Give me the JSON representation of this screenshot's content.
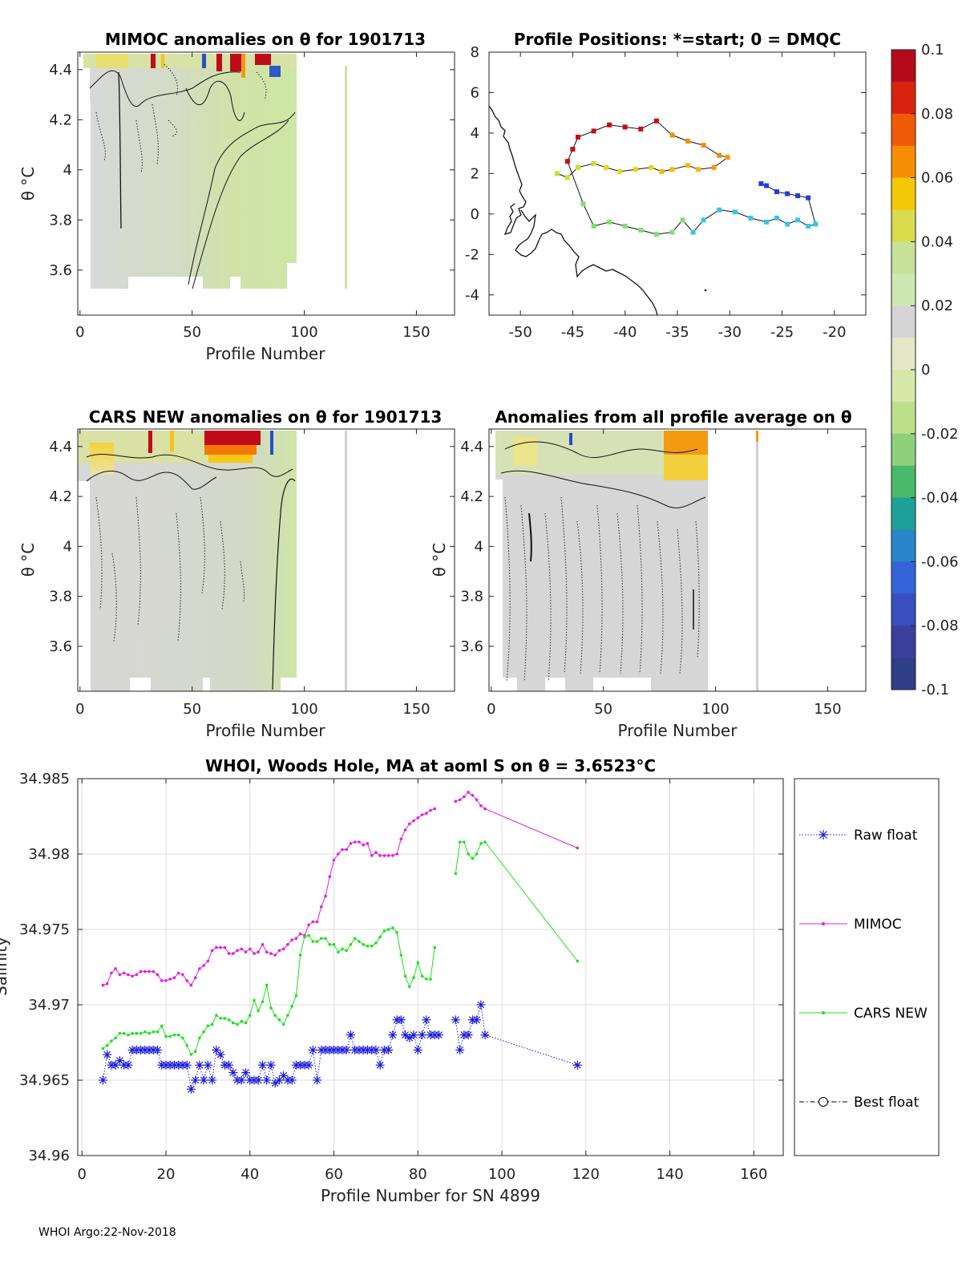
{
  "footer": "WHOI Argo:22-Nov-2018",
  "panels": {
    "mimoc": {
      "title": "MIMOC anomalies on θ  for 1901713",
      "xlabel": "Profile Number",
      "ylabel": "θ °C",
      "xticks": [
        "0",
        "50",
        "100",
        "150"
      ],
      "yticks": [
        "3.6",
        "3.8",
        "4",
        "4.2",
        "4.4"
      ],
      "xlim": [
        -1,
        167
      ],
      "ylim": [
        3.42,
        4.47
      ]
    },
    "positions": {
      "title": "Profile Positions: *=start; 0 = DMQC",
      "xticks": [
        "-50",
        "-45",
        "-40",
        "-35",
        "-30",
        "-25",
        "-20"
      ],
      "yticks": [
        "8",
        "6",
        "4",
        "2",
        "0",
        "-2",
        "-4"
      ],
      "xlim": [
        -53,
        -17
      ],
      "ylim": [
        -5,
        8
      ]
    },
    "cars": {
      "title": "CARS NEW anomalies on θ for 1901713",
      "xlabel": "Profile Number",
      "ylabel": "θ °C",
      "xticks": [
        "0",
        "50",
        "100",
        "150"
      ],
      "yticks": [
        "3.6",
        "3.8",
        "4",
        "4.2",
        "4.4"
      ]
    },
    "allavg": {
      "title": "Anomalies from all profile average on θ",
      "xlabel": "Profile Number",
      "ylabel": "θ °C",
      "xticks": [
        "0",
        "50",
        "100",
        "150"
      ],
      "yticks": [
        "3.6",
        "3.8",
        "4",
        "4.2",
        "4.4"
      ]
    },
    "colorbar": {
      "ticks": [
        "0.1",
        "0.08",
        "0.06",
        "0.04",
        "0.02",
        "0",
        "-0.02",
        "-0.04",
        "-0.06",
        "-0.08",
        "-0.1"
      ],
      "colors": [
        "#b40a1a",
        "#d8240f",
        "#ef5a07",
        "#f58e04",
        "#f3c806",
        "#d9dc4c",
        "#c8e29a",
        "#cfe8b2",
        "#d5d5d5",
        "#e4e8c8",
        "#d6e8a8",
        "#bce08a",
        "#8fd07a",
        "#48b86a",
        "#1ea09a",
        "#2a86c8",
        "#3464d8",
        "#3a4fbf",
        "#3a3e9c",
        "#2f3f88"
      ]
    }
  },
  "chart_data": {
    "type": "line",
    "title": "WHOI, Woods Hole, MA at aoml S on θ = 3.6523°C",
    "xlabel": "Profile Number for SN 4899",
    "ylabel": "Salinity",
    "xlim": [
      -1,
      167
    ],
    "ylim": [
      34.96,
      34.985
    ],
    "xticks": [
      "0",
      "20",
      "40",
      "60",
      "80",
      "100",
      "120",
      "140",
      "160"
    ],
    "yticks": [
      "34.96",
      "34.965",
      "34.97",
      "34.975",
      "34.98",
      "34.985"
    ],
    "legend": [
      "Raw float",
      "MIMOC",
      "CARS NEW",
      "Best float"
    ],
    "series": [
      {
        "name": "Raw float",
        "color": "#1a1adc",
        "x": [
          5,
          6,
          7,
          8,
          9,
          10,
          11,
          12,
          13,
          14,
          15,
          16,
          17,
          18,
          19,
          20,
          21,
          22,
          23,
          24,
          25,
          26,
          27,
          28,
          29,
          30,
          31,
          32,
          33,
          34,
          35,
          36,
          37,
          38,
          39,
          40,
          41,
          42,
          43,
          44,
          45,
          46,
          47,
          48,
          49,
          50,
          51,
          52,
          53,
          54,
          55,
          56,
          57,
          58,
          59,
          60,
          61,
          62,
          63,
          64,
          65,
          66,
          67,
          68,
          69,
          70,
          71,
          72,
          73,
          74,
          75,
          76,
          77,
          78,
          79,
          80,
          81,
          82,
          83,
          84,
          85,
          89,
          90,
          91,
          92,
          93,
          94,
          95,
          96,
          118
        ],
        "values": [
          34.965,
          34.9667,
          34.966,
          34.966,
          34.9663,
          34.966,
          34.966,
          34.967,
          34.967,
          34.967,
          34.967,
          34.967,
          34.967,
          34.967,
          34.966,
          34.966,
          34.966,
          34.966,
          34.966,
          34.966,
          34.966,
          34.9644,
          34.965,
          34.966,
          34.965,
          34.966,
          34.965,
          34.967,
          34.9667,
          34.966,
          34.966,
          34.9655,
          34.965,
          34.965,
          34.9655,
          34.965,
          34.965,
          34.965,
          34.966,
          34.965,
          34.966,
          34.9648,
          34.965,
          34.9653,
          34.965,
          34.965,
          34.966,
          34.966,
          34.966,
          34.966,
          34.967,
          34.965,
          34.967,
          34.967,
          34.967,
          34.967,
          34.967,
          34.967,
          34.967,
          34.968,
          34.967,
          34.967,
          34.967,
          34.967,
          34.967,
          34.967,
          34.966,
          34.967,
          34.967,
          34.968,
          34.969,
          34.969,
          34.968,
          34.9678,
          34.968,
          34.967,
          34.968,
          34.969,
          34.968,
          34.968,
          34.968,
          34.969,
          34.967,
          34.968,
          34.968,
          34.969,
          34.969,
          34.97,
          34.968,
          34.966
        ]
      },
      {
        "name": "MIMOC",
        "color": "#e020e0",
        "x": [
          5,
          6,
          7,
          8,
          9,
          10,
          11,
          12,
          13,
          14,
          15,
          16,
          17,
          18,
          19,
          20,
          21,
          22,
          23,
          24,
          25,
          26,
          27,
          28,
          29,
          30,
          31,
          32,
          33,
          34,
          35,
          36,
          37,
          38,
          39,
          40,
          41,
          42,
          43,
          44,
          45,
          46,
          47,
          48,
          49,
          50,
          51,
          52,
          53,
          54,
          55,
          56,
          57,
          58,
          59,
          60,
          61,
          62,
          63,
          64,
          65,
          66,
          67,
          68,
          69,
          70,
          71,
          72,
          73,
          74,
          75,
          76,
          77,
          78,
          79,
          80,
          81,
          82,
          83,
          84,
          89,
          90,
          91,
          92,
          93,
          94,
          95,
          96,
          118
        ],
        "values": [
          34.9713,
          34.9714,
          34.9721,
          34.9724,
          34.972,
          34.9721,
          34.972,
          34.9719,
          34.972,
          34.9722,
          34.9722,
          34.9722,
          34.9722,
          34.972,
          34.9716,
          34.9716,
          34.9717,
          34.9718,
          34.9721,
          34.972,
          34.9716,
          34.9713,
          34.9718,
          34.9724,
          34.9726,
          34.9729,
          34.9736,
          34.9738,
          34.9738,
          34.9738,
          34.9734,
          34.9734,
          34.9736,
          34.9737,
          34.9735,
          34.9737,
          34.9734,
          34.9735,
          34.974,
          34.9735,
          34.9734,
          34.9733,
          34.9736,
          34.9737,
          34.974,
          34.9743,
          34.9744,
          34.9747,
          34.9746,
          34.9753,
          34.9755,
          34.9755,
          34.9765,
          34.9772,
          34.9785,
          34.9796,
          34.98,
          34.9803,
          34.9803,
          34.9807,
          34.9808,
          34.9808,
          34.9806,
          34.9807,
          34.9799,
          34.9801,
          34.9799,
          34.9799,
          34.9799,
          34.9799,
          34.98,
          34.981,
          34.9816,
          34.982,
          34.9822,
          34.9824,
          34.9826,
          34.9827,
          34.9829,
          34.983,
          34.9835,
          34.9836,
          34.9838,
          34.9841,
          34.9839,
          34.9836,
          34.9832,
          34.983,
          34.9804
        ]
      },
      {
        "name": "CARS NEW",
        "color": "#20e020",
        "x": [
          5,
          6,
          7,
          8,
          9,
          10,
          11,
          12,
          13,
          14,
          15,
          16,
          17,
          18,
          19,
          20,
          21,
          22,
          23,
          24,
          25,
          26,
          27,
          28,
          29,
          30,
          31,
          32,
          33,
          34,
          35,
          36,
          37,
          38,
          39,
          40,
          41,
          42,
          43,
          44,
          45,
          46,
          47,
          48,
          49,
          50,
          51,
          52,
          53,
          54,
          55,
          56,
          57,
          58,
          59,
          60,
          61,
          62,
          63,
          64,
          65,
          66,
          67,
          68,
          69,
          70,
          71,
          72,
          73,
          74,
          75,
          76,
          77,
          78,
          79,
          80,
          81,
          82,
          83,
          84,
          89,
          90,
          91,
          92,
          93,
          94,
          95,
          96,
          118
        ],
        "values": [
          34.9671,
          34.9673,
          34.9676,
          34.9678,
          34.9681,
          34.9681,
          34.968,
          34.9681,
          34.9681,
          34.9681,
          34.9682,
          34.9681,
          34.9682,
          34.9682,
          34.9686,
          34.9679,
          34.9679,
          34.968,
          34.968,
          34.9678,
          34.9673,
          34.9667,
          34.9669,
          34.9678,
          34.9682,
          34.9686,
          34.9687,
          34.9693,
          34.9691,
          34.9691,
          34.969,
          34.9688,
          34.9687,
          34.9689,
          34.9688,
          34.9693,
          34.9703,
          34.9696,
          34.9702,
          34.9713,
          34.9698,
          34.9693,
          34.969,
          34.9687,
          34.9693,
          34.9699,
          34.9706,
          34.9733,
          34.9745,
          34.9746,
          34.9742,
          34.9742,
          34.9744,
          34.9744,
          34.974,
          34.974,
          34.9735,
          34.9737,
          34.9736,
          34.974,
          34.9744,
          34.9742,
          34.974,
          34.9739,
          34.9739,
          34.9741,
          34.9745,
          34.9749,
          34.975,
          34.9751,
          34.9748,
          34.9733,
          34.9719,
          34.9712,
          34.9718,
          34.9728,
          34.9719,
          34.9717,
          34.9717,
          34.9738,
          34.9787,
          34.9808,
          34.9808,
          34.98,
          34.9797,
          34.98,
          34.9807,
          34.9808,
          34.9729
        ]
      }
    ]
  }
}
